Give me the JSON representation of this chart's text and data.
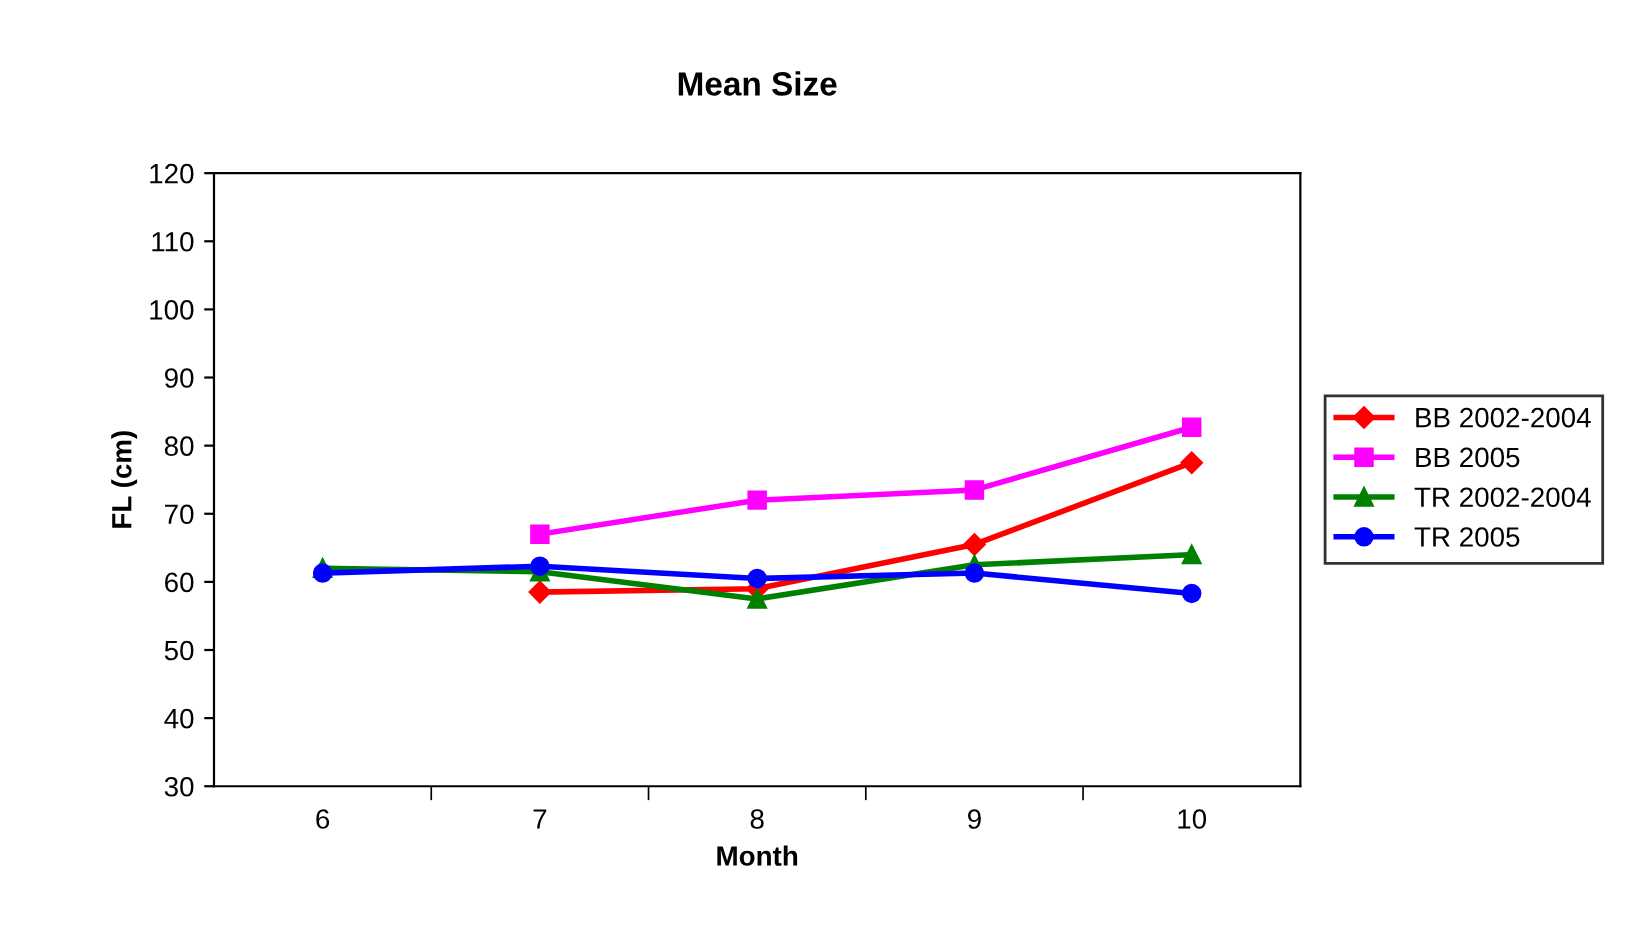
{
  "chart_data": {
    "type": "line",
    "title": "Mean Size",
    "xlabel": "Month",
    "ylabel": "FL (cm)",
    "categories": [
      "6",
      "7",
      "8",
      "9",
      "10"
    ],
    "series": [
      {
        "name": "BB 2002-2004",
        "color": "#ff0000",
        "marker": "diamond",
        "values": [
          null,
          58.5,
          59,
          65.5,
          77.5
        ]
      },
      {
        "name": "BB 2005",
        "color": "#ff00ff",
        "marker": "square",
        "values": [
          null,
          67,
          72,
          73.5,
          82.7
        ]
      },
      {
        "name": "TR 2002-2004",
        "color": "#008000",
        "marker": "triangle",
        "values": [
          62,
          61.5,
          57.5,
          62.5,
          64
        ]
      },
      {
        "name": "TR 2005",
        "color": "#0000ff",
        "marker": "circle",
        "values": [
          61.3,
          62.3,
          60.5,
          61.3,
          58.3
        ]
      }
    ],
    "ylim": [
      30,
      120
    ],
    "yticks": [
      30,
      40,
      50,
      60,
      70,
      80,
      90,
      100,
      110,
      120
    ],
    "grid": false,
    "legend": "right"
  }
}
